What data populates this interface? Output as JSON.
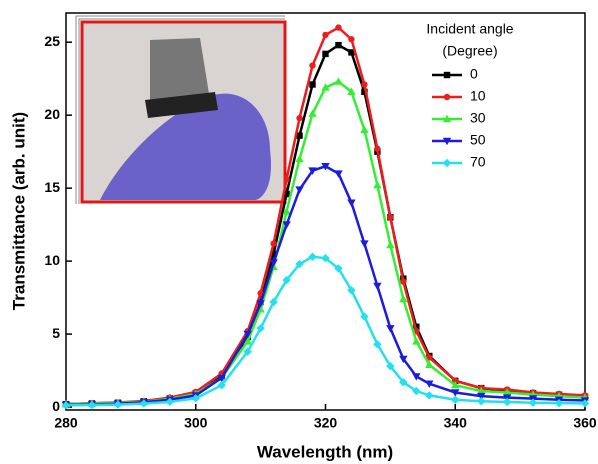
{
  "chart_data": {
    "type": "line",
    "xlabel": "Wavelength (nm)",
    "ylabel": "Transmittance (arb. unit)",
    "legend_title": [
      "Incident angle",
      "(Degree)"
    ],
    "x": [
      280,
      284,
      288,
      292,
      296,
      300,
      304,
      308,
      310,
      312,
      314,
      316,
      318,
      320,
      322,
      324,
      326,
      328,
      330,
      332,
      334,
      336,
      340,
      344,
      348,
      352,
      356,
      360
    ],
    "series": [
      {
        "name": "0",
        "color": "#000000",
        "marker": "square",
        "values": [
          0.2,
          0.25,
          0.3,
          0.4,
          0.6,
          0.95,
          2.1,
          4.8,
          7.2,
          10.5,
          14.6,
          18.6,
          22.1,
          24.2,
          24.8,
          24.3,
          21.6,
          17.5,
          13.0,
          8.8,
          5.5,
          3.5,
          1.8,
          1.3,
          1.1,
          0.95,
          0.85,
          0.7
        ]
      },
      {
        "name": "10",
        "color": "#ee1c1c",
        "marker": "circle",
        "values": [
          0.2,
          0.26,
          0.31,
          0.42,
          0.65,
          1.04,
          2.3,
          5.2,
          7.8,
          11.2,
          15.6,
          19.8,
          23.4,
          25.5,
          26,
          25.2,
          22.1,
          17.7,
          13,
          8.6,
          5.2,
          3.4,
          1.8,
          1.3,
          1.2,
          1.0,
          0.9,
          0.8
        ]
      },
      {
        "name": "30",
        "color": "#33ee33",
        "marker": "triangle",
        "values": [
          0.2,
          0.24,
          0.28,
          0.36,
          0.56,
          0.9,
          2.0,
          4.5,
          6.7,
          9.6,
          13.4,
          17.0,
          20.1,
          21.9,
          22.3,
          21.6,
          19.0,
          15.2,
          11.1,
          7.4,
          4.5,
          2.9,
          1.5,
          1.1,
          1.0,
          0.85,
          0.75,
          0.65
        ]
      },
      {
        "name": "50",
        "color": "#1c1cdd",
        "marker": "down-triangle",
        "values": [
          0.15,
          0.18,
          0.23,
          0.33,
          0.5,
          0.8,
          2.0,
          5.0,
          7.1,
          9.9,
          12.5,
          14.9,
          16.2,
          16.5,
          16.0,
          14.0,
          11.2,
          8.3,
          5.4,
          3.3,
          2.1,
          1.6,
          1.0,
          0.75,
          0.65,
          0.58,
          0.5,
          0.45
        ]
      },
      {
        "name": "70",
        "color": "#22e0ee",
        "marker": "diamond",
        "values": [
          0.12,
          0.14,
          0.17,
          0.24,
          0.36,
          0.6,
          1.5,
          3.8,
          5.4,
          7.2,
          8.7,
          9.8,
          10.3,
          10.2,
          9.5,
          8.0,
          6.2,
          4.3,
          2.8,
          1.7,
          1.1,
          0.8,
          0.5,
          0.4,
          0.35,
          0.3,
          0.27,
          0.25
        ]
      }
    ],
    "xlim": [
      280,
      360
    ],
    "xticks": [
      280,
      300,
      320,
      340,
      360
    ],
    "ylim": [
      -0.2,
      27
    ],
    "yticks": [
      0,
      5,
      10,
      15,
      20,
      25
    ],
    "legend_position": "upper right"
  }
}
